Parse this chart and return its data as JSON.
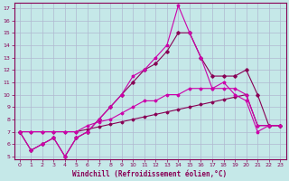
{
  "xlabel": "Windchill (Refroidissement éolien,°C)",
  "xlim": [
    -0.5,
    23.5
  ],
  "ylim": [
    4.8,
    17.4
  ],
  "yticks": [
    5,
    6,
    7,
    8,
    9,
    10,
    11,
    12,
    13,
    14,
    15,
    16,
    17
  ],
  "xticks": [
    0,
    1,
    2,
    3,
    4,
    5,
    6,
    7,
    8,
    9,
    10,
    11,
    12,
    13,
    14,
    15,
    16,
    17,
    18,
    19,
    20,
    21,
    22,
    23
  ],
  "bg_color": "#c5e8e8",
  "grid_color": "#b0b8d0",
  "line_color1": "#cc00aa",
  "line_color2": "#880055",
  "line1_x": [
    0,
    1,
    2,
    3,
    4,
    5,
    6,
    7,
    8,
    9,
    10,
    11,
    12,
    13,
    14,
    15,
    16,
    17,
    18,
    19,
    20,
    21,
    22,
    23
  ],
  "line1_y": [
    7.0,
    5.5,
    6.0,
    6.5,
    5.0,
    6.5,
    7.0,
    8.0,
    9.0,
    10.0,
    11.5,
    12.0,
    13.0,
    14.0,
    17.2,
    15.0,
    13.0,
    10.5,
    11.0,
    10.0,
    9.5,
    7.0,
    7.5,
    7.5
  ],
  "line2_x": [
    0,
    1,
    2,
    3,
    4,
    5,
    6,
    7,
    8,
    9,
    10,
    11,
    12,
    13,
    14,
    15,
    16,
    17,
    18,
    19,
    20,
    21,
    22,
    23
  ],
  "line2_y": [
    7.0,
    5.5,
    6.0,
    6.5,
    5.0,
    6.5,
    7.0,
    8.0,
    9.0,
    10.0,
    11.0,
    12.0,
    12.5,
    13.5,
    15.0,
    15.0,
    13.0,
    11.5,
    11.5,
    11.5,
    12.0,
    10.0,
    7.5,
    7.5
  ],
  "line3_x": [
    0,
    1,
    2,
    3,
    4,
    5,
    6,
    7,
    8,
    9,
    10,
    11,
    12,
    13,
    14,
    15,
    16,
    17,
    18,
    19,
    20,
    21,
    22,
    23
  ],
  "line3_y": [
    7.0,
    7.0,
    7.0,
    7.0,
    7.0,
    7.0,
    7.2,
    7.4,
    7.6,
    7.8,
    8.0,
    8.2,
    8.4,
    8.6,
    8.8,
    9.0,
    9.2,
    9.4,
    9.6,
    9.8,
    10.0,
    7.5,
    7.5,
    7.5
  ],
  "line4_x": [
    0,
    1,
    2,
    3,
    4,
    5,
    6,
    7,
    8,
    9,
    10,
    11,
    12,
    13,
    14,
    15,
    16,
    17,
    18,
    19,
    20,
    21,
    22,
    23
  ],
  "line4_y": [
    7.0,
    7.0,
    7.0,
    7.0,
    7.0,
    7.0,
    7.5,
    7.8,
    8.0,
    8.5,
    9.0,
    9.5,
    9.5,
    10.0,
    10.0,
    10.5,
    10.5,
    10.5,
    10.5,
    10.5,
    10.0,
    7.5,
    7.5,
    7.5
  ]
}
